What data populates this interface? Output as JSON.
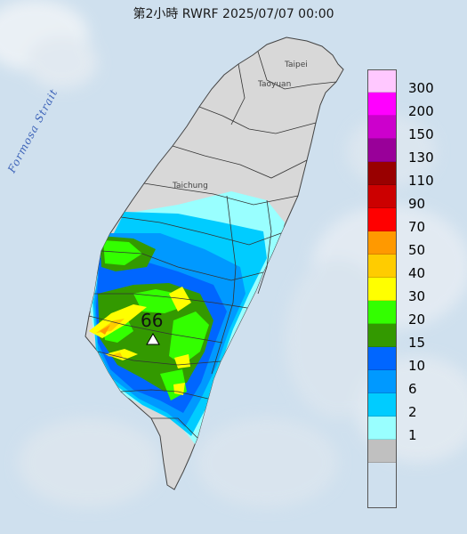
{
  "title": "第2小時  RWRF 2025/07/07 00:00",
  "labels": {
    "strait": "Formosa Strait",
    "taipei": "Taipei",
    "taoyuan": "Taoyuan",
    "taichung": "Taichung"
  },
  "max_marker": {
    "value": "66",
    "icon": "triangle-marker-icon"
  },
  "legend": {
    "items": [
      {
        "label": "300",
        "color": "#ffc8ff"
      },
      {
        "label": "200",
        "color": "#ff00ff"
      },
      {
        "label": "150",
        "color": "#cc00cc"
      },
      {
        "label": "130",
        "color": "#990099"
      },
      {
        "label": "110",
        "color": "#990000"
      },
      {
        "label": "90",
        "color": "#cc0000"
      },
      {
        "label": "70",
        "color": "#ff0000"
      },
      {
        "label": "50",
        "color": "#ff9900"
      },
      {
        "label": "40",
        "color": "#ffcc00"
      },
      {
        "label": "30",
        "color": "#ffff00"
      },
      {
        "label": "20",
        "color": "#33ff00"
      },
      {
        "label": "15",
        "color": "#339900"
      },
      {
        "label": "10",
        "color": "#0066ff"
      },
      {
        "label": "6",
        "color": "#0099ff"
      },
      {
        "label": "2",
        "color": "#00ccff"
      },
      {
        "label": "1",
        "color": "#99ffff"
      },
      {
        "label": "",
        "color": "#c0c0c0"
      }
    ]
  },
  "colors": {
    "sea": "#cfe0ee",
    "land": "#d9d9d9",
    "boundary": "#333333"
  }
}
